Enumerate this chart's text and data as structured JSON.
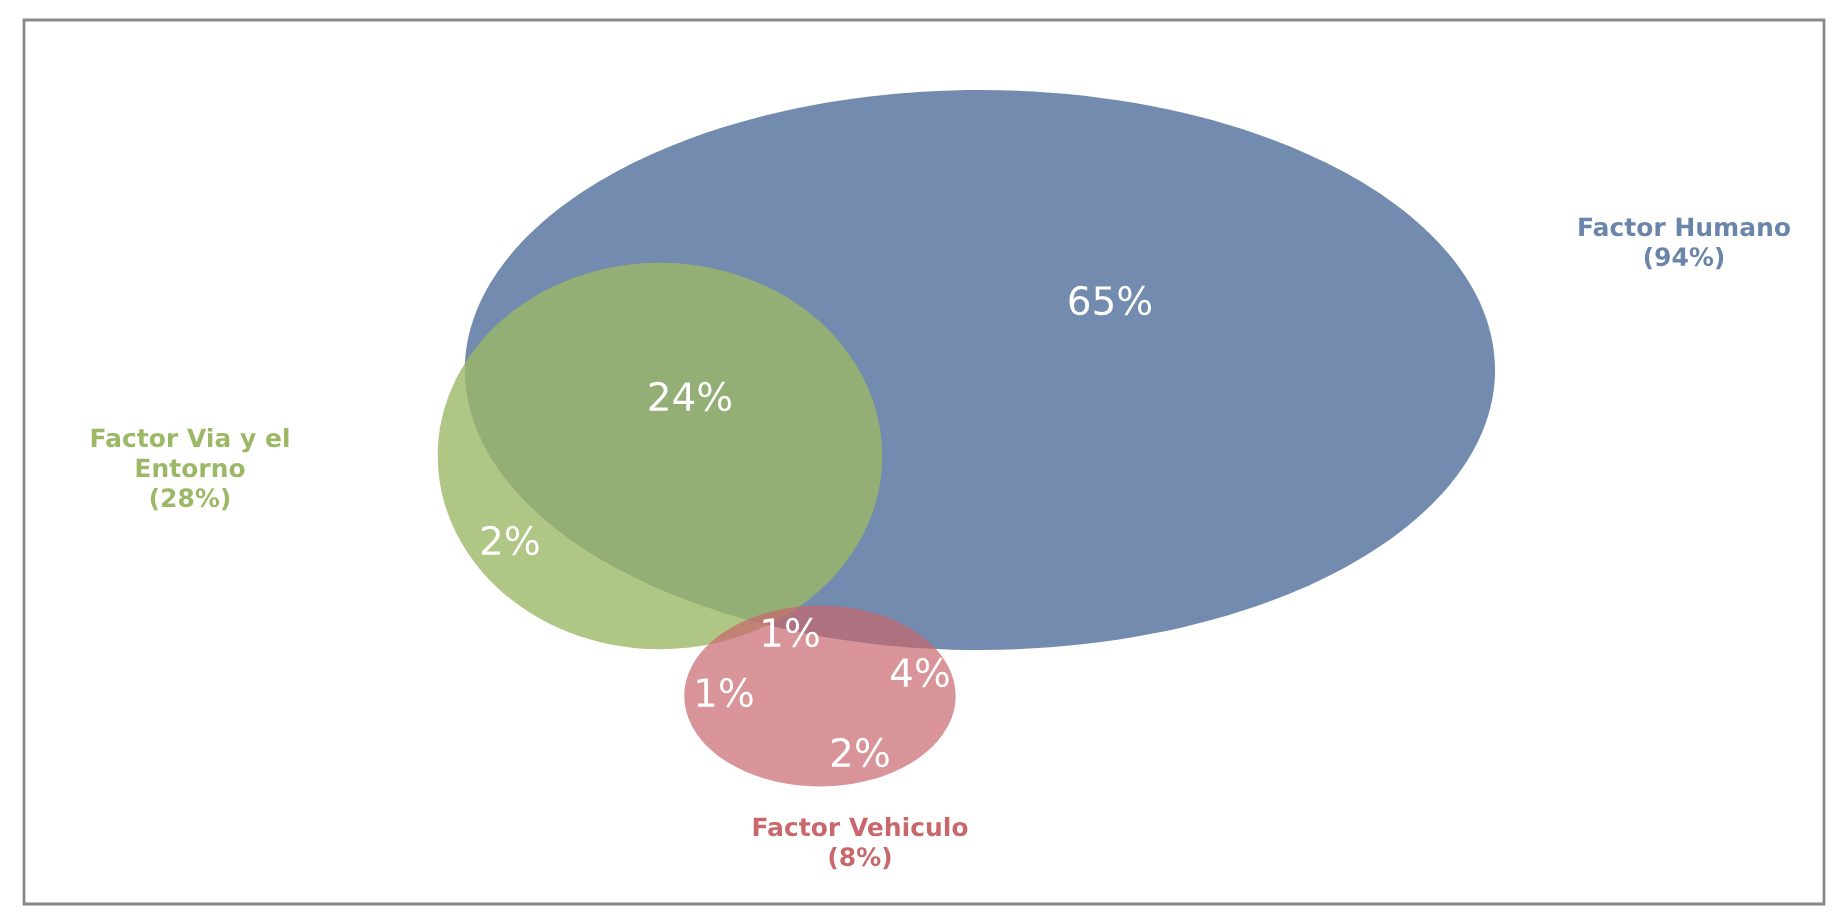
{
  "chart_data": {
    "type": "other",
    "categories": [
      "Factor Humano",
      "Factor Via y el\nEntorno",
      "Factor Vehiculo"
    ],
    "values": [
      94,
      28,
      8
    ],
    "value_labels": [
      "(94%)",
      "(28%)",
      "(8%)"
    ],
    "colors": [
      "#6a85aa",
      "#9cb866",
      "#c8676c"
    ],
    "annotations": [
      "65%",
      "24%",
      "2%",
      "1%",
      "1%",
      "4%",
      "2%"
    ]
  }
}
